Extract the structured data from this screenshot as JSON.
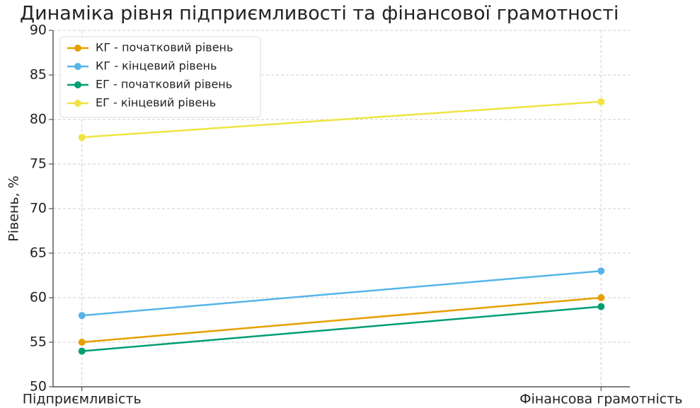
{
  "chart_data": {
    "type": "line",
    "title": "Динаміка рівня підприємливості та фінансової грамотності",
    "y_label": "Рівень, %",
    "categories": [
      "Підприємливість",
      "Фінансова грамотність"
    ],
    "series": [
      {
        "name": "КГ - початковий рівень",
        "color": "#E69F00",
        "values": [
          55,
          60
        ]
      },
      {
        "name": "КГ - кінцевий рівень",
        "color": "#56B4E9",
        "values": [
          58,
          63
        ]
      },
      {
        "name": "ЕГ - початковий рівень",
        "color": "#009E73",
        "values": [
          54,
          59
        ]
      },
      {
        "name": "ЕГ - кінцевий рівень",
        "color": "#F0E442",
        "values": [
          78,
          82
        ]
      }
    ],
    "ylim": [
      50,
      90
    ],
    "yticks": [
      50,
      55,
      60,
      65,
      70,
      75,
      80,
      85,
      90
    ],
    "grid": true,
    "legend": "upper left"
  }
}
